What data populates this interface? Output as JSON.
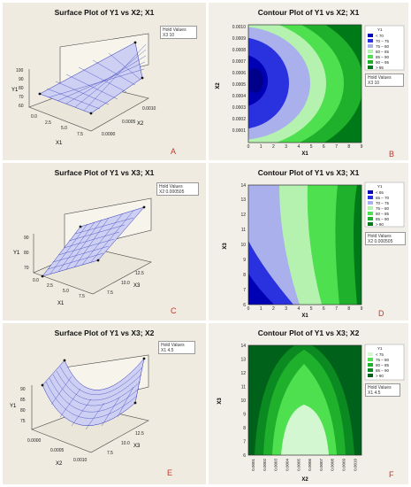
{
  "panels": [
    {
      "letter": "A",
      "title": "Surface Plot of Y1 vs X2; X1",
      "hold": {
        "header": "Hold Values",
        "line": "X3  10"
      },
      "chart_data": {
        "type": "surface",
        "title": "Surface Plot of Y1 vs X2; X1",
        "xlabel": "X1",
        "ylabel": "X2",
        "zlabel": "Y1",
        "x_ticks": [
          "0.0",
          "2.5",
          "5.0",
          "7.5"
        ],
        "y_ticks": [
          "0.0000",
          "0.0005",
          "0.0010"
        ],
        "z_ticks": [
          "60",
          "70",
          "80",
          "90",
          "100"
        ]
      }
    },
    {
      "letter": "B",
      "title": "Contour Plot of Y1 vs X2; X1",
      "hold": {
        "header": "Hold Values",
        "line": "X3  10"
      },
      "chart_data": {
        "type": "contour",
        "title": "Contour Plot of Y1 vs X2; X1",
        "xlabel": "X1",
        "ylabel": "X2",
        "x_ticks": [
          "0",
          "1",
          "2",
          "3",
          "4",
          "5",
          "6",
          "7",
          "8",
          "9"
        ],
        "y_ticks": [
          "0.0001",
          "0.0002",
          "0.0003",
          "0.0004",
          "0.0005",
          "0.0006",
          "0.0007",
          "0.0008",
          "0.0009",
          "0.0010"
        ],
        "legend_title": "Y1",
        "legend": [
          {
            "label": "<  70",
            "color": "#0000b4"
          },
          {
            "label": "70 –  75",
            "color": "#2a32e0"
          },
          {
            "label": "75 –  80",
            "color": "#aab0ec"
          },
          {
            "label": "80 –  85",
            "color": "#b5f2b0"
          },
          {
            "label": "85 –  90",
            "color": "#4fe04f"
          },
          {
            "label": "90 –  95",
            "color": "#1fb02c"
          },
          {
            "label": ">  95",
            "color": "#007a18"
          }
        ]
      }
    },
    {
      "letter": "C",
      "title": "Surface Plot of Y1 vs X3; X1",
      "hold": {
        "header": "Hold Values",
        "line": "X2  0.000505"
      },
      "chart_data": {
        "type": "surface",
        "title": "Surface Plot of Y1 vs X3; X1",
        "xlabel": "X1",
        "ylabel": "X3",
        "zlabel": "Y1",
        "x_ticks": [
          "0.0",
          "2.5",
          "5.0",
          "7.5"
        ],
        "y_ticks": [
          "7.5",
          "10.0",
          "12.5"
        ],
        "z_ticks": [
          "70",
          "80",
          "90"
        ]
      }
    },
    {
      "letter": "D",
      "title": "Contour Plot of Y1 vs X3; X1",
      "hold": {
        "header": "Hold Values",
        "line": "X2  0.000505"
      },
      "chart_data": {
        "type": "contour",
        "title": "Contour Plot of Y1 vs X3; X1",
        "xlabel": "X1",
        "ylabel": "X3",
        "x_ticks": [
          "0",
          "1",
          "2",
          "3",
          "4",
          "5",
          "6",
          "7",
          "8",
          "9"
        ],
        "y_ticks": [
          "6",
          "7",
          "8",
          "9",
          "10",
          "11",
          "12",
          "13",
          "14"
        ],
        "legend_title": "Y1",
        "legend": [
          {
            "label": "<  65",
            "color": "#0000b4"
          },
          {
            "label": "65 –  70",
            "color": "#2a32e0"
          },
          {
            "label": "70 –  75",
            "color": "#aab0ec"
          },
          {
            "label": "75 –  80",
            "color": "#b5f2b0"
          },
          {
            "label": "80 –  85",
            "color": "#4fe04f"
          },
          {
            "label": "85 –  90",
            "color": "#1fb02c"
          },
          {
            "label": ">  90",
            "color": "#007a18"
          }
        ]
      }
    },
    {
      "letter": "E",
      "title": "Surface Plot of Y1 vs X3; X2",
      "hold": {
        "header": "Hold Values",
        "line": "X1  4.5"
      },
      "chart_data": {
        "type": "surface",
        "title": "Surface Plot of Y1 vs X3; X2",
        "xlabel": "X2",
        "ylabel": "X3",
        "zlabel": "Y1",
        "x_ticks": [
          "0.0000",
          "0.0005",
          "0.0010"
        ],
        "y_ticks": [
          "7.5",
          "10.0",
          "12.5"
        ],
        "z_ticks": [
          "75",
          "80",
          "85",
          "90"
        ]
      }
    },
    {
      "letter": "F",
      "title": "Contour Plot of Y1 vs X3; X2",
      "hold": {
        "header": "Hold Values",
        "line": "X1  4.5"
      },
      "chart_data": {
        "type": "contour",
        "title": "Contour Plot of Y1 vs X3; X2",
        "xlabel": "X2",
        "ylabel": "X3",
        "x_ticks": [
          "0.0001",
          "0.0002",
          "0.0003",
          "0.0004",
          "0.0005",
          "0.0006",
          "0.0007",
          "0.0008",
          "0.0009",
          "0.0010"
        ],
        "y_ticks": [
          "6",
          "7",
          "8",
          "9",
          "10",
          "11",
          "12",
          "13",
          "14"
        ],
        "legend_title": "Y1",
        "legend": [
          {
            "label": "<  75",
            "color": "#d3f7d0"
          },
          {
            "label": "75 –  80",
            "color": "#4fe04f"
          },
          {
            "label": "80 –  85",
            "color": "#1fb02c"
          },
          {
            "label": "85 –  90",
            "color": "#0b8a22"
          },
          {
            "label": ">  90",
            "color": "#00611a"
          }
        ]
      }
    }
  ]
}
